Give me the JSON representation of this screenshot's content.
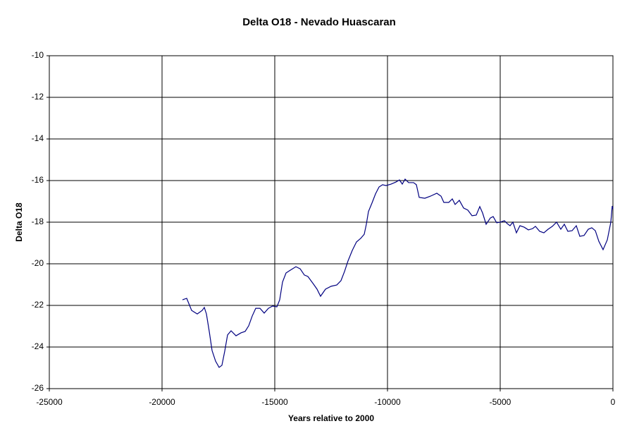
{
  "chart_data": {
    "type": "line",
    "title": "Delta O18 - Nevado Huascaran",
    "xlabel": "Years relative to 2000",
    "ylabel": "Delta O18",
    "xlim": [
      -25000,
      0
    ],
    "xticks": [
      -25000,
      -20000,
      -15000,
      -10000,
      -5000,
      0
    ],
    "ylim": [
      -26,
      -10
    ],
    "yticks": [
      -10,
      -12,
      -14,
      -16,
      -18,
      -20,
      -22,
      -24,
      -26
    ],
    "grid": true,
    "legend": false,
    "x": [
      -19094,
      -18906,
      -18688,
      -18438,
      -18219,
      -18125,
      -18031,
      -17906,
      -17781,
      -17625,
      -17469,
      -17344,
      -17219,
      -17094,
      -16938,
      -16719,
      -16500,
      -16313,
      -16156,
      -16000,
      -15844,
      -15656,
      -15469,
      -15281,
      -15094,
      -14906,
      -14781,
      -14656,
      -14500,
      -14313,
      -14063,
      -13875,
      -13688,
      -13531,
      -13281,
      -13125,
      -12969,
      -12750,
      -12500,
      -12250,
      -12063,
      -11906,
      -11750,
      -11563,
      -11375,
      -11188,
      -11031,
      -10938,
      -10844,
      -10688,
      -10531,
      -10375,
      -10219,
      -10063,
      -9844,
      -9625,
      -9469,
      -9344,
      -9219,
      -9063,
      -8844,
      -8719,
      -8594,
      -8344,
      -8094,
      -7813,
      -7625,
      -7500,
      -7281,
      -7125,
      -7000,
      -6813,
      -6625,
      -6438,
      -6250,
      -6063,
      -5906,
      -5781,
      -5625,
      -5438,
      -5313,
      -5156,
      -5000,
      -4813,
      -4688,
      -4563,
      -4438,
      -4281,
      -4125,
      -3938,
      -3750,
      -3563,
      -3438,
      -3250,
      -3063,
      -2875,
      -2688,
      -2500,
      -2313,
      -2156,
      -2000,
      -1813,
      -1625,
      -1469,
      -1281,
      -1094,
      -938,
      -781,
      -625,
      -438,
      -250,
      -94,
      -31,
      0
    ],
    "series": [
      {
        "name": "Delta O18",
        "color": "#000080",
        "values": [
          -21.73,
          -21.66,
          -22.24,
          -22.41,
          -22.24,
          -22.1,
          -22.41,
          -23.25,
          -24.17,
          -24.68,
          -24.98,
          -24.88,
          -24.2,
          -23.42,
          -23.22,
          -23.46,
          -23.32,
          -23.25,
          -22.98,
          -22.51,
          -22.14,
          -22.14,
          -22.37,
          -22.14,
          -22.03,
          -22.07,
          -21.73,
          -20.88,
          -20.44,
          -20.31,
          -20.14,
          -20.24,
          -20.54,
          -20.61,
          -20.98,
          -21.22,
          -21.56,
          -21.22,
          -21.08,
          -21.02,
          -20.81,
          -20.37,
          -19.86,
          -19.36,
          -18.95,
          -18.78,
          -18.58,
          -18.1,
          -17.49,
          -17.08,
          -16.64,
          -16.31,
          -16.2,
          -16.24,
          -16.17,
          -16.07,
          -15.97,
          -16.17,
          -15.93,
          -16.1,
          -16.1,
          -16.2,
          -16.81,
          -16.85,
          -16.75,
          -16.61,
          -16.75,
          -17.05,
          -17.05,
          -16.88,
          -17.15,
          -16.95,
          -17.32,
          -17.42,
          -17.69,
          -17.66,
          -17.25,
          -17.56,
          -18.1,
          -17.8,
          -17.73,
          -18.03,
          -18.0,
          -17.93,
          -18.07,
          -18.17,
          -18.0,
          -18.51,
          -18.17,
          -18.24,
          -18.37,
          -18.31,
          -18.2,
          -18.44,
          -18.51,
          -18.34,
          -18.2,
          -18.0,
          -18.34,
          -18.1,
          -18.44,
          -18.41,
          -18.17,
          -18.68,
          -18.64,
          -18.34,
          -18.27,
          -18.41,
          -18.92,
          -19.32,
          -18.85,
          -18.0,
          -17.22,
          -17.36
        ]
      }
    ]
  }
}
